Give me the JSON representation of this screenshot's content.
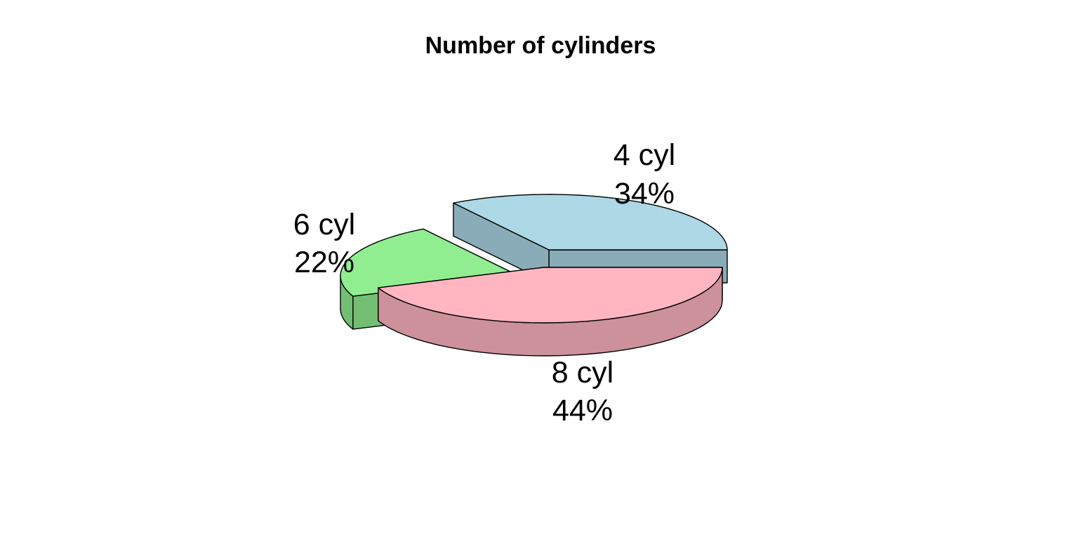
{
  "chart_data": {
    "type": "pie",
    "title": "Number of cylinders",
    "three_d": true,
    "exploded": true,
    "slices": [
      {
        "label": "4 cyl",
        "percent_label": "34%",
        "value": 34,
        "color": "#add8e6",
        "side_color": "#8aacb8"
      },
      {
        "label": "6 cyl",
        "percent_label": "22%",
        "value": 22,
        "color": "#90ee90",
        "side_color": "#73be73"
      },
      {
        "label": "8 cyl",
        "percent_label": "44%",
        "value": 44,
        "color": "#ffb6c1",
        "side_color": "#cc919a"
      }
    ]
  }
}
